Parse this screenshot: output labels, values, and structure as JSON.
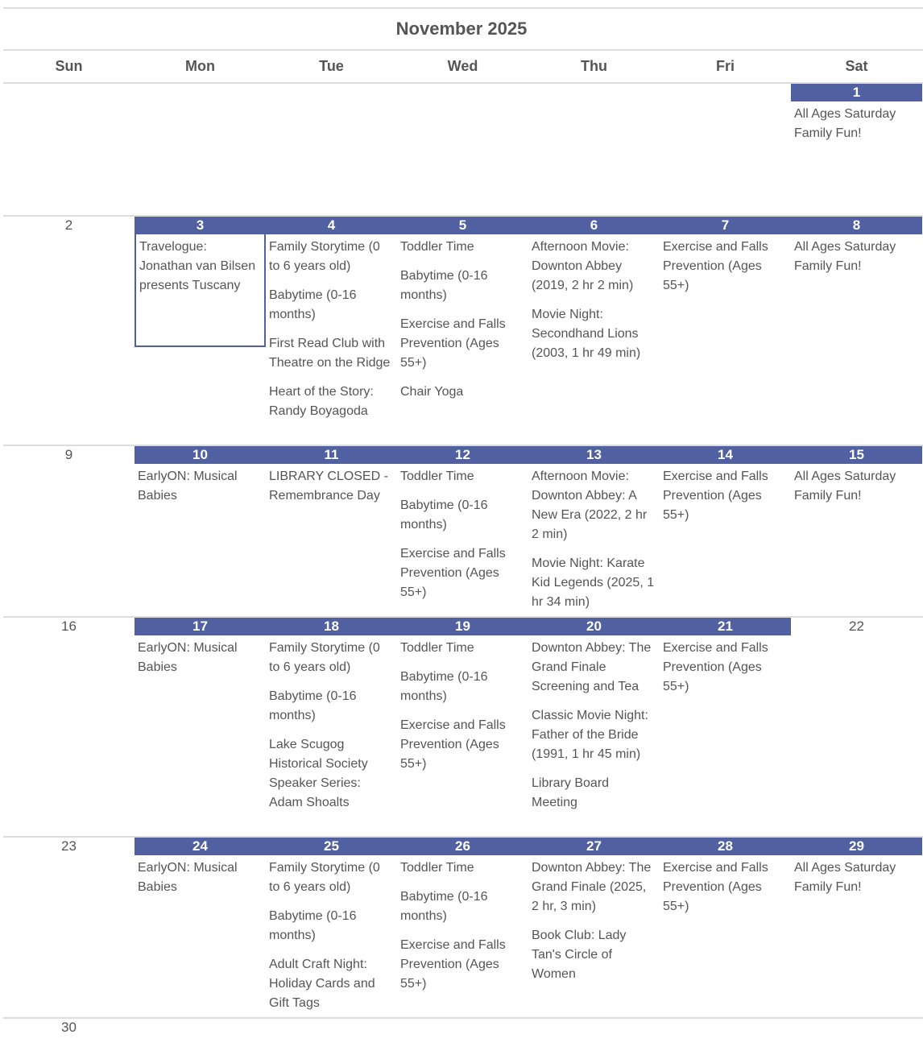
{
  "calendar": {
    "title": "November 2025",
    "accent_color": "#5060a0",
    "weekdays": [
      "Sun",
      "Mon",
      "Tue",
      "Wed",
      "Thu",
      "Fri",
      "Sat"
    ],
    "selected_day": "3",
    "weeks": [
      {
        "days": [
          null,
          null,
          null,
          null,
          null,
          null,
          {
            "num": "1",
            "events": [
              "All Ages Saturday Family Fun!"
            ]
          }
        ]
      },
      {
        "days": [
          {
            "num": "2",
            "events": []
          },
          {
            "num": "3",
            "events": [
              "Travelogue: Jonathan van Bilsen presents Tuscany"
            ]
          },
          {
            "num": "4",
            "events": [
              "Family Storytime (0 to 6 years old)",
              "Babytime (0-16 months)",
              "First Read Club with Theatre on the Ridge",
              "Heart of the Story: Randy Boyagoda"
            ]
          },
          {
            "num": "5",
            "events": [
              "Toddler Time",
              "Babytime (0-16 months)",
              "Exercise and Falls Prevention (Ages 55+)",
              "Chair Yoga"
            ]
          },
          {
            "num": "6",
            "events": [
              "Afternoon Movie: Downton Abbey (2019, 2 hr 2 min)",
              "Movie Night: Secondhand Lions (2003, 1 hr 49 min)"
            ]
          },
          {
            "num": "7",
            "events": [
              "Exercise and Falls Prevention (Ages 55+)"
            ]
          },
          {
            "num": "8",
            "events": [
              "All Ages Saturday Family Fun!"
            ]
          }
        ]
      },
      {
        "days": [
          {
            "num": "9",
            "events": []
          },
          {
            "num": "10",
            "events": [
              "EarlyON: Musical Babies"
            ]
          },
          {
            "num": "11",
            "events": [
              "LIBRARY CLOSED - Remembrance Day"
            ]
          },
          {
            "num": "12",
            "events": [
              "Toddler Time",
              "Babytime (0-16 months)",
              "Exercise and Falls Prevention (Ages 55+)"
            ]
          },
          {
            "num": "13",
            "events": [
              "Afternoon Movie: Downton Abbey: A New Era (2022, 2 hr 2 min)",
              "Movie Night: Karate Kid Legends (2025, 1 hr 34 min)"
            ]
          },
          {
            "num": "14",
            "events": [
              "Exercise and Falls Prevention (Ages 55+)"
            ]
          },
          {
            "num": "15",
            "events": [
              "All Ages Saturday Family Fun!"
            ]
          }
        ]
      },
      {
        "days": [
          {
            "num": "16",
            "events": []
          },
          {
            "num": "17",
            "events": [
              "EarlyON: Musical Babies"
            ]
          },
          {
            "num": "18",
            "events": [
              "Family Storytime (0 to 6 years old)",
              "Babytime (0-16 months)",
              "Lake Scugog Historical Society Speaker Series: Adam Shoalts"
            ]
          },
          {
            "num": "19",
            "events": [
              "Toddler Time",
              "Babytime (0-16 months)",
              "Exercise and Falls Prevention (Ages 55+)"
            ]
          },
          {
            "num": "20",
            "events": [
              "Downton Abbey: The Grand Finale Screening and Tea",
              "Classic Movie Night: Father of the Bride (1991, 1 hr 45 min)",
              "Library Board Meeting"
            ]
          },
          {
            "num": "21",
            "events": [
              "Exercise and Falls Prevention (Ages 55+)"
            ]
          },
          {
            "num": "22",
            "events": []
          }
        ]
      },
      {
        "days": [
          {
            "num": "23",
            "events": []
          },
          {
            "num": "24",
            "events": [
              "EarlyON: Musical Babies"
            ]
          },
          {
            "num": "25",
            "events": [
              "Family Storytime (0 to 6 years old)",
              "Babytime (0-16 months)",
              "Adult Craft Night: Holiday Cards and Gift Tags"
            ]
          },
          {
            "num": "26",
            "events": [
              "Toddler Time",
              "Babytime (0-16 months)",
              "Exercise and Falls Prevention (Ages 55+)"
            ]
          },
          {
            "num": "27",
            "events": [
              "Downton Abbey: The Grand Finale (2025, 2 hr, 3 min)",
              "Book Club: Lady Tan's Circle of Women"
            ]
          },
          {
            "num": "28",
            "events": [
              "Exercise and Falls Prevention (Ages 55+)"
            ]
          },
          {
            "num": "29",
            "events": [
              "All Ages Saturday Family Fun!"
            ]
          }
        ]
      },
      {
        "days": [
          {
            "num": "30",
            "events": []
          },
          null,
          null,
          null,
          null,
          null,
          null
        ]
      }
    ]
  }
}
